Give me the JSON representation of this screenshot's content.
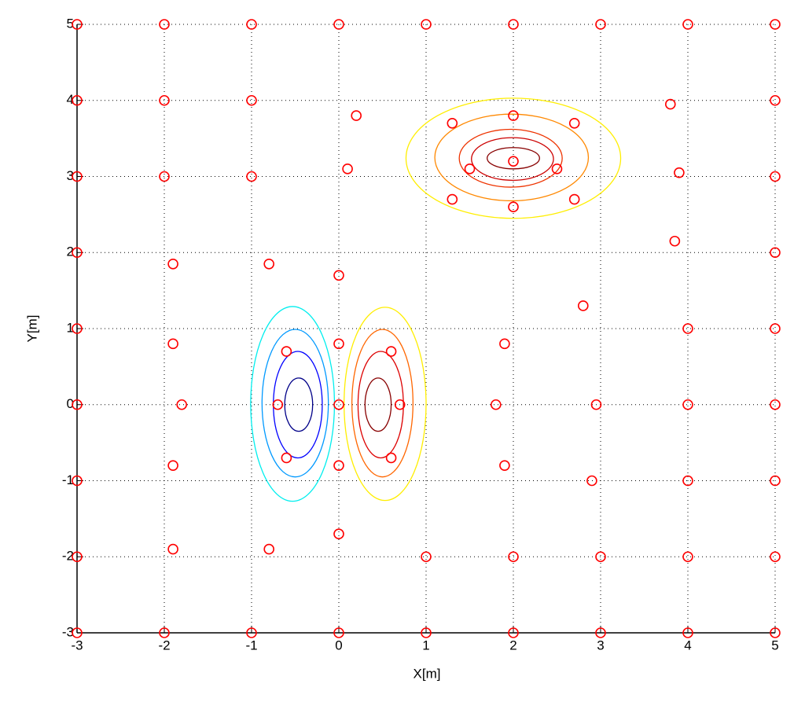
{
  "chart_data": {
    "type": "scatter",
    "xlabel": "X[m]",
    "ylabel": "Y[m]",
    "xlim": [
      -3,
      5
    ],
    "ylim": [
      -3,
      5
    ],
    "xticks": [
      -3,
      -2,
      -1,
      0,
      1,
      2,
      3,
      4,
      5
    ],
    "yticks": [
      -3,
      -2,
      -1,
      0,
      1,
      2,
      3,
      4,
      5
    ],
    "grid": true,
    "marker_color": "#ff0000",
    "x": [
      -3,
      -2,
      -1,
      0,
      1,
      2,
      3,
      4,
      5,
      -3,
      -2,
      -1,
      5,
      3.8,
      -3,
      -2,
      -1,
      5,
      3.9,
      0.2,
      0.1,
      2,
      2,
      2,
      1.3,
      2.7,
      1.5,
      2.5,
      1.3,
      2.7,
      -3,
      5,
      3.85,
      -1.9,
      -0.8,
      0,
      2.8,
      -3,
      4,
      5,
      -1.9,
      0,
      -0.6,
      0.6,
      1.9,
      -3,
      -1.8,
      -0.7,
      0,
      0.7,
      1.8,
      2.95,
      4,
      5,
      -3,
      -1.9,
      -0.6,
      0,
      0.6,
      1.9,
      2.9,
      4,
      5,
      0,
      -0.8,
      -1.9,
      -3,
      1,
      2,
      3,
      4,
      5,
      -3,
      -2,
      -1,
      0,
      1,
      2,
      3,
      4,
      5
    ],
    "y": [
      5,
      5,
      5,
      5,
      5,
      5,
      5,
      5,
      5,
      4,
      4,
      4,
      4,
      3.95,
      3,
      3,
      3,
      3,
      3.05,
      3.8,
      3.1,
      3.8,
      3.2,
      2.6,
      3.7,
      3.7,
      3.1,
      3.1,
      2.7,
      2.7,
      2,
      2,
      2.15,
      1.85,
      1.85,
      1.7,
      1.3,
      1,
      1,
      1,
      0.8,
      0.8,
      0.7,
      0.7,
      0.8,
      0,
      0,
      0,
      0,
      0,
      0,
      0,
      0,
      0,
      -1,
      -0.8,
      -0.7,
      -0.8,
      -0.7,
      -0.8,
      -1,
      -1,
      -1,
      -1.7,
      -1.9,
      -1.9,
      -2,
      -2,
      -2,
      -2,
      -2,
      -2,
      -3,
      -3,
      -3,
      -3,
      -3,
      -3,
      -3,
      -3,
      -3
    ],
    "contours": [
      {
        "color": "#ffee00",
        "cx": 2,
        "cy": 3.24,
        "rx": 1.23,
        "ry": 0.79
      },
      {
        "color": "#ff8800",
        "cx": 1.98,
        "cy": 3.25,
        "rx": 0.88,
        "ry": 0.57
      },
      {
        "color": "#ee3300",
        "cx": 1.97,
        "cy": 3.24,
        "rx": 0.59,
        "ry": 0.38
      },
      {
        "color": "#cc0000",
        "cx": 1.99,
        "cy": 3.23,
        "rx": 0.47,
        "ry": 0.28
      },
      {
        "color": "#880000",
        "cx": 2,
        "cy": 3.24,
        "rx": 0.3,
        "ry": 0.14
      },
      {
        "color": "#00eeee",
        "cx": -0.53,
        "cy": 0.01,
        "rx": 0.48,
        "ry": 1.28
      },
      {
        "color": "#0099ff",
        "cx": -0.5,
        "cy": 0.02,
        "rx": 0.38,
        "ry": 0.97
      },
      {
        "color": "#0000ff",
        "cx": -0.47,
        "cy": 0,
        "rx": 0.28,
        "ry": 0.7
      },
      {
        "color": "#000088",
        "cx": -0.46,
        "cy": 0,
        "rx": 0.16,
        "ry": 0.35
      },
      {
        "color": "#ffee00",
        "cx": 0.53,
        "cy": 0.01,
        "rx": 0.47,
        "ry": 1.27
      },
      {
        "color": "#ff6600",
        "cx": 0.5,
        "cy": 0.02,
        "rx": 0.35,
        "ry": 0.97
      },
      {
        "color": "#dd0000",
        "cx": 0.48,
        "cy": 0,
        "rx": 0.26,
        "ry": 0.7
      },
      {
        "color": "#880000",
        "cx": 0.45,
        "cy": 0,
        "rx": 0.15,
        "ry": 0.35
      }
    ]
  }
}
